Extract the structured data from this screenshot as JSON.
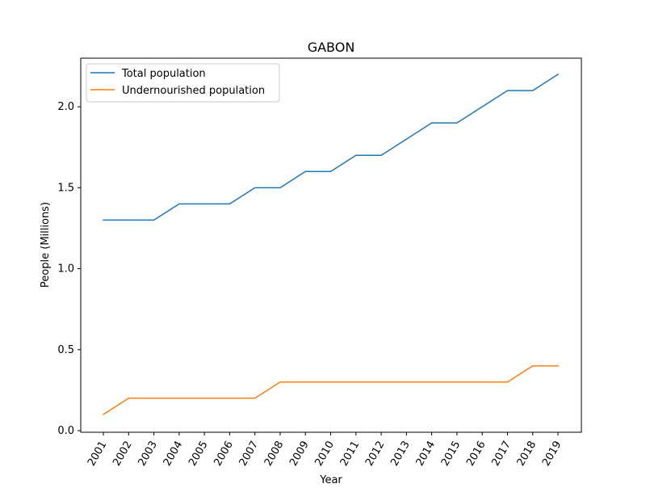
{
  "chart_data": {
    "type": "line",
    "title": "GABON",
    "xlabel": "Year",
    "ylabel": "People (Millions)",
    "x": [
      "2001",
      "2002",
      "2003",
      "2004",
      "2005",
      "2006",
      "2007",
      "2008",
      "2009",
      "2010",
      "2011",
      "2012",
      "2013",
      "2014",
      "2015",
      "2016",
      "2017",
      "2018",
      "2019"
    ],
    "series": [
      {
        "name": "Total population",
        "color": "#1f77b4",
        "values": [
          1.3,
          1.3,
          1.3,
          1.4,
          1.4,
          1.4,
          1.5,
          1.5,
          1.6,
          1.6,
          1.7,
          1.7,
          1.8,
          1.9,
          1.9,
          2.0,
          2.1,
          2.1,
          2.2
        ]
      },
      {
        "name": "Undernourished population",
        "color": "#ff7f0e",
        "values": [
          0.1,
          0.2,
          0.2,
          0.2,
          0.2,
          0.2,
          0.2,
          0.3,
          0.3,
          0.3,
          0.3,
          0.3,
          0.3,
          0.3,
          0.3,
          0.3,
          0.3,
          0.4,
          0.4
        ]
      }
    ],
    "ylim": [
      -0.01,
      2.3
    ],
    "yticks": [
      0.0,
      0.5,
      1.0,
      1.5,
      2.0
    ],
    "ytick_labels": [
      "0.0",
      "0.5",
      "1.0",
      "1.5",
      "2.0"
    ],
    "xtick_rotation": 60,
    "grid": false,
    "legend_position": "upper left"
  }
}
